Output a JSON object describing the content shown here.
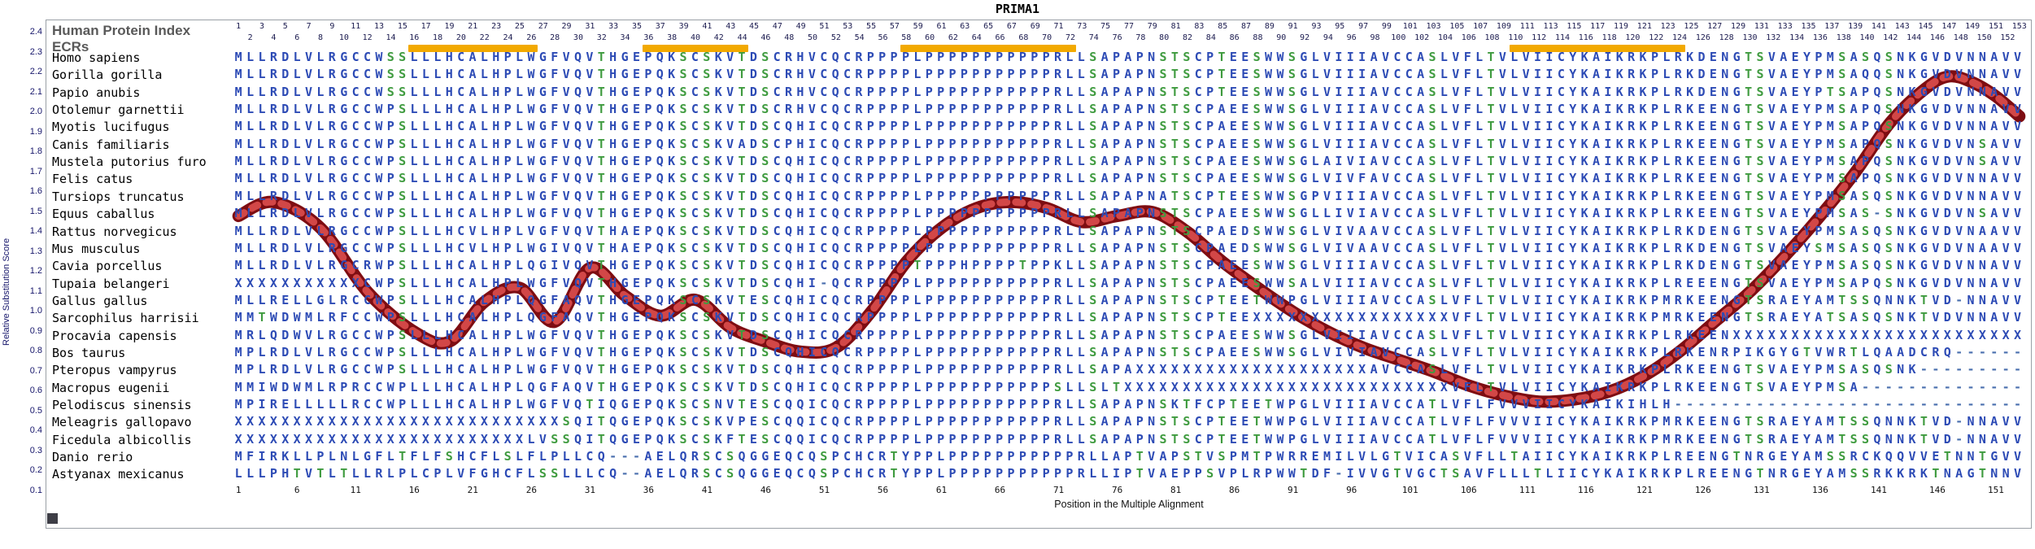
{
  "title": "PRIMA1",
  "header": {
    "human_protein_index": "Human Protein Index",
    "ecrs_label": "ECRs"
  },
  "y_axis": {
    "label": "Relative Substitution Score",
    "ticks": [
      2.4,
      2.3,
      2.2,
      2.1,
      2.0,
      1.9,
      1.8,
      1.7,
      1.6,
      1.5,
      1.4,
      1.3,
      1.2,
      1.1,
      1.0,
      0.9,
      0.8,
      0.7,
      0.6,
      0.5,
      0.4,
      0.3,
      0.2,
      0.1
    ]
  },
  "x_axis": {
    "label": "Position in the Multiple Alignment",
    "ticks": [
      1,
      6,
      11,
      16,
      21,
      26,
      31,
      36,
      41,
      46,
      51,
      56,
      61,
      66,
      71,
      76,
      81,
      86,
      91,
      96,
      101,
      106,
      111,
      116,
      121,
      126,
      131,
      136,
      141,
      146,
      151
    ]
  },
  "top_ruler": {
    "odd_row": [
      1,
      3,
      5,
      7,
      9,
      11,
      13,
      15,
      17,
      19,
      21,
      23,
      25,
      27,
      29,
      31,
      33,
      35,
      37,
      39,
      41,
      43,
      45,
      47,
      49,
      51,
      53,
      55,
      57,
      59,
      61,
      63,
      65,
      67,
      69,
      71,
      73,
      75,
      77,
      79,
      81,
      83,
      85,
      87,
      89,
      91,
      93,
      95,
      97,
      99,
      101,
      103,
      105,
      107,
      109,
      111,
      113,
      115,
      117,
      119,
      121,
      123,
      125,
      127,
      129,
      131,
      133,
      135,
      137,
      139,
      141,
      143,
      145,
      147,
      149,
      151,
      153
    ],
    "even_row": [
      2,
      4,
      6,
      8,
      10,
      12,
      14,
      16,
      18,
      20,
      22,
      24,
      26,
      28,
      30,
      32,
      34,
      36,
      38,
      40,
      42,
      44,
      46,
      48,
      50,
      52,
      54,
      56,
      58,
      60,
      62,
      64,
      66,
      68,
      70,
      72,
      74,
      76,
      78,
      80,
      82,
      84,
      86,
      88,
      90,
      92,
      94,
      96,
      98,
      100,
      102,
      104,
      106,
      108,
      110,
      112,
      114,
      116,
      118,
      120,
      122,
      124,
      126,
      128,
      130,
      132,
      134,
      136,
      138,
      140,
      142,
      144,
      146,
      148,
      150,
      152
    ]
  },
  "ecr_bars": [
    {
      "start": 16,
      "end": 26
    },
    {
      "start": 36,
      "end": 44
    },
    {
      "start": 58,
      "end": 72
    },
    {
      "start": 110,
      "end": 124
    }
  ],
  "colors": {
    "ecr_bar": "#F2A900",
    "curve_dark": "#7E0D12",
    "curve_light": "#D24747",
    "residue_default": "#2D4BB5",
    "residue_polar": "#3F9B3F",
    "gap_dash": "#4A6FAE",
    "axis_text": "#16166B",
    "header_text": "#595959"
  },
  "alignment": {
    "columns": 153,
    "species": [
      {
        "name": "Homo sapiens",
        "sequence": "MLLRDLVLRGCCWSSLLLHCALHPLWGFVQVTHGEPQKSCSKVTDSCRHVCQCRPPPPLPPPPPPPPPPPRLLSAPAPNSTSCPTEESWWSGLVIIIAVCCASLVFLTVLVIICYKAIKRKPLRKDENGTSVAEYPMSASQSNKGVDVNNAVV"
      },
      {
        "name": "Gorilla gorilla",
        "sequence": "MLLRDLVLRGCCWSSLLLHCALHPLWGFVQVTHGEPQKSCSKVTDSCRHVCQCRPPPPLPPPPPPPPPPPRLLSAPAPNSTSCPTEESWWSGLVIIIAVCCASLVFLTVLVIICYKAIKRKPLRKDENGTSVAEYPMSAQQSNKGVDVNNAVV"
      },
      {
        "name": "Papio anubis",
        "sequence": "MLLRDLVLRGCCWSSLLLHCALHPLWGFVQVTHGEPQKSCSKVTDSCRHVCQCRPPPPLPPPPPPPPPPPRLLSAPAPNSTSCPTEESWWSGLVIIIAVCCASLVFLTVLVIICYKAIKRKPLRKDENGTSVAEYPTSAPQSNKGVDVNNAVV"
      },
      {
        "name": "Otolemur garnettii",
        "sequence": "MLLRDLVLRGCCWPSLLLHCALHPLWGFVQVTHGEPQKSCSKVTDSCRHVCQCRPPPPLPPPPPPPPPPPRLLSAPAPNSTSCPAEESWWSGLVIIIAVCCASLVFLTVLVIICYKAIKRKPLRKEENGTSVAEYPMSAPQSNKGVDVNNAVV"
      },
      {
        "name": "Myotis lucifugus",
        "sequence": "MLLRDLVLRGCCWPSLLLHCALHPLWGFVQVTHGEPQKSCSKVTDSCQHICQCRPPPPLPPPPPPPPPPPRLLSAPAPNSTSCPAEESWWSGLVIIIAVCCASLVFLTVLVIICYKAIKRKPLRKEENGTSVAEYPMSAPQSNKGVDVNNAVV"
      },
      {
        "name": "Canis familiaris",
        "sequence": "MLLRDLVLRGCCWPSLLLHCALHPLWGFVQVTHGEPQKSCSKVADSCPHICQCRPPPPLPPPPPPPPPPPRLLSAPAPNSTSCPAEESWWSGLVIIIAVCCASLVFLTVLVIICYKAIKRKPLRKEENGTSVAEYPMSAPQSNKGVDVNSAVV"
      },
      {
        "name": "Mustela putorius furo",
        "sequence": "MLLRDLVLRGCCWPSLLLHCALHPLWGFVQVTHGEPQKSCSKVTDSCQHICQCRPPPPLPPPPPPPPPPPRLLSAPAPNSTSCPAEESWWSGLAIVIAVCCASLVFLTVLVIICYKAIKRKPLRKEENGTSVAEYPMSAPQSNKGVDVNSAVV"
      },
      {
        "name": "Felis catus",
        "sequence": "MLLRDLVLRGCCWPSLLLHCALHPLWGFVQVTHGEPQKSCSKVTDSCQHICQCRPPPPLPPPPPPPPPPPRLLSAPAPNSTSCPAEESWWSGLVIVFAVCCASLVFLTVLVIICYKAIKRKPLRKEENGTSVAEYPMSAPQSNKGVDVNNAVV"
      },
      {
        "name": "Tursiops truncatus",
        "sequence": "MLLRDLVLRGCCWPSLLLHCALHPLWGFVQVTHGEPQKSCSKVTDSCQHICQCRPPPPLPPPPPPPPPPPRLLSAPAPNATSCPTEESWWSGPVIIIAVCCASLVFLTVLVIICYKAIKRKPLRKEENGTSVAEYPMSASQSNKGVDVNNAVV"
      },
      {
        "name": "Equus caballus",
        "sequence": "MLLRDLVLRGCCWPSLLLHCALHPLWGFVQVTHGEPQKSCSKVTDSCQHICQCRPPPPLPPPPPPPPPPPRLLSAPAPNSTSCPAEESWWSGLLIVIAVCCASLVFLTVLVIICYKAIKRKPLRKEENGTSVAEYPMSAS-SNKGVDVNSAVV"
      },
      {
        "name": "Rattus norvegicus",
        "sequence": "MLLRDLVLRGCCWPSLLLHCVLHPLVGFVQVTHAEPQKSCSKVTDSCQHICQCRPPPPLPPPPPPPPPPPRLLSAPAPNSTSCPAEDSWWSGLVIVAAVCCASLVFLTVLVIICYKAIKRKPLRKDENGTSVAEYPMSASQSNKGVDVNAAVV"
      },
      {
        "name": "Mus musculus",
        "sequence": "MLLRDLVLRGCCWPSLLLHCVLHPLWGIVQVTHAEPQKSCSKVTDSCQHICQCRPPPPLPPPPPPPPPPPRLLSAPAPNSTSCPAEDSWWSGLVIVAAVCCASLVFLTVLVIICYKAIKRKPLRKDENGTSVAEYSMSASQSNKGVDVNAAVV"
      },
      {
        "name": "Cavia porcellus",
        "sequence": "MLLRDLVLRGCRWPSLLLHCALHPLQGIVQVTHGEPQKSCSKVTDSCQHICQCRPPPPTPPPHPPPPTPPKLLSAPAPNSTSCPAEESWWSGLVIIIAVCCASLVFLTVLVIICYKAIKRKPLRKDENGTSVAEYPMSASQSNKGVDVNNAVV"
      },
      {
        "name": "Tupaia belangeri",
        "sequence": "XXXXXXXXXXXCWPSLLLHCALHPLWGFVQVTHGEPQKSCSKVTDSCQHI-QCRPPPPLPPPPPPPPPPPRLLSAPAPNSTSCPAEESWWSALVIIIAVCCASLVFLTVLVIICYKAIKRKPLREEENGTSVAEYPMSAPQSNKGVDVNNAVV"
      },
      {
        "name": "Gallus gallus",
        "sequence": "MLLRELLGLRCCWPSLLLHCALHPLQGFAQVTHGEPQKSCSKVTESCQHICQCRPPPPLPPPPPPPPPPPRLLSAPAPNSTSCPTEETWWPGLVIIIAVCCASLVFLTVLVIICYKAIKRKPMRKEENGTSRAEYAMTSSQNNKTVD-NNAVV"
      },
      {
        "name": "Sarcophilus harrisii",
        "sequence": "MMTWDWMLRFCCWPSLLLHCALHPLQGFAQVTHGEPQKSCSKVTDSCQHICQCRPPPPLPPPPPPPPPPPRLLSAPAPNSTSCPTEEXXXXXXXXXXXXXXXXXVFLTVLVIICYKAIKRKPMRKEENGTSRAEYATSASQSNKTVDVNNAVV"
      },
      {
        "name": "Procavia capensis",
        "sequence": "MRLQDWVLRGCCWPSLLLHCALHPLWGFVQVTHGEPQKSCSKVTDSCQHICQCRPPPPLPPPPPPPPPPPRLLSAPAPNSTSCPAEESWWSGLVIIIAVCCASLVFLTVLVIICYKAIKRKPLRKEENXXXXXXXXXXXXXXXXXXXXXXXXX"
      },
      {
        "name": "Bos taurus",
        "sequence": "MPLRDLVLRGCCWPSLLLHCALHPLWGFVQVTHGEPQKSCSKVTDSCQHICQCRPPPPLPPPPPPPPPPPRLLSAPAPNSTSCPAEESWWSGLVIVIAVCCASLVFLTVLVIICYKAIKRKPLRKENRPIKGYGTVWRTLQAADCRQ------"
      },
      {
        "name": "Pteropus vampyrus",
        "sequence": "MPLRDLVLRGCCWPSLLLHCALHPLWGFVQVTHGEPQKSCSKVTDSCQHICQCRPPPPLPPPPPPPPPPPRLLSAPAXXXXXXXXXXXXXXXXXXXXAVCCASLVFLTVLVIICYKAIKRKPLRKEENGTSVAEYPMSASQSNK---------"
      },
      {
        "name": "Macropus eugenii",
        "sequence": "MMIWDWMLRPRCCWPLLLHCALHPLQGFAQVTHGEPQKSCSKVTDSCQHICQCRPPPPLPPPPPPPPPPPSLLSLTXXXXXXXXXXXXXXXXXXXXXXXXXXXXVFLTVLVIICYKAIKRKPLRKEENGTSVAEYPMSA--------------"
      },
      {
        "name": "Pelodiscus sinensis",
        "sequence": "MPIRELLLLLRCCWPLLLHCALHPLWGFVQTIQGEPQKSCSNVTESCQQICQCRPPPPLPPPPPPPPPPPRLLSAPAPNSKTFCPTEETWPGLVIIIAVCCATLVFLFVVVIICYKAIKIHLH------------------------------"
      },
      {
        "name": "Meleagris gallopavo",
        "sequence": "XXXXXXXXXXXXXXXXXXXXXXXXXXXXSQITQGEPQKSCSKVPESCQQICQCRPPPPLPPPPPPPPPPPRLLSAPAPNSTSCPTEETWWPGLVIIIAVCCATLVFLFVVVIICYKAIKRKPMRKEENGTSRAEYAMTSSQNNKTVD-NNAVV"
      },
      {
        "name": "Ficedula albicollis",
        "sequence": "XXXXXXXXXXXXXXXXXXXXXXXXXLVSSQITQGEPQKSCSKFTESCQQICQCRPPPPLPPPPPPPPPPPRLLSAPAPNSTSCPTEETWWPGLVIIIAVCCATLVFLFVVVIICYKAIKRKPMRKEENGTSRAEYAMTSSQNNKTVD-NNAVV"
      },
      {
        "name": "Danio rerio",
        "sequence": "MFIRKLLPLNLGFLTFLFSHCFLSLFLPLLCQ---AELQRSCSQGGEQCQSPCHCRTYPPLPPPPPPPPPPPRLLAPTVAPSTVSPMTPWRREMILVLGTVICASVFLLTAIICYKAIKRKPLREENGTNRGEYAMSSRCKQQVVETNNTGVV"
      },
      {
        "name": "Astyanax mexicanus",
        "sequence": "LLLPHTVTLTLLRLPLCPLVFGHCFLSSLLLCQ--AELQRSCSQGGEQCQSPCHCRTYPPLPPPPPPPPPPPRLLIPTVAEPPSVPLRPWWTDF-IVVGTVGCTSAVFLLLTLIICYKAIKRKPLREENGTNRGEYAMSSRKKRKTNAGTNNV"
      }
    ]
  },
  "chart_data": {
    "type": "line",
    "title": "PRIMA1",
    "xlabel": "Position in the Multiple Alignment",
    "ylabel": "Relative Substitution Score",
    "xlim": [
      1,
      153
    ],
    "ylim": [
      0.1,
      2.4
    ],
    "grid": false,
    "legend_position": "none",
    "ecr_regions": [
      [
        16,
        26
      ],
      [
        36,
        44
      ],
      [
        58,
        72
      ],
      [
        110,
        124
      ]
    ],
    "series": [
      {
        "name": "Relative Substitution Score",
        "color": "#7E0D12",
        "x": [
          1,
          4,
          8,
          12,
          16,
          19,
          22,
          25,
          28,
          31,
          34,
          37,
          40,
          43,
          46,
          49,
          52,
          55,
          58,
          61,
          64,
          67,
          70,
          73,
          76,
          79,
          82,
          85,
          88,
          91,
          94,
          97,
          100,
          103,
          106,
          109,
          112,
          115,
          118,
          121,
          124,
          127,
          130,
          133,
          136,
          139,
          142,
          145,
          147,
          149,
          151,
          153
        ],
        "y": [
          1.48,
          1.55,
          1.42,
          1.1,
          0.9,
          0.85,
          1.05,
          1.12,
          0.95,
          1.22,
          1.08,
          0.98,
          1.06,
          0.92,
          0.85,
          0.8,
          0.82,
          1.0,
          1.25,
          1.42,
          1.52,
          1.55,
          1.52,
          1.45,
          1.48,
          1.5,
          1.4,
          1.25,
          1.12,
          1.0,
          0.9,
          0.82,
          0.76,
          0.7,
          0.63,
          0.58,
          0.55,
          0.56,
          0.6,
          0.68,
          0.8,
          0.95,
          1.1,
          1.28,
          1.48,
          1.7,
          1.95,
          2.12,
          2.18,
          2.15,
          2.08,
          1.98
        ]
      }
    ]
  }
}
